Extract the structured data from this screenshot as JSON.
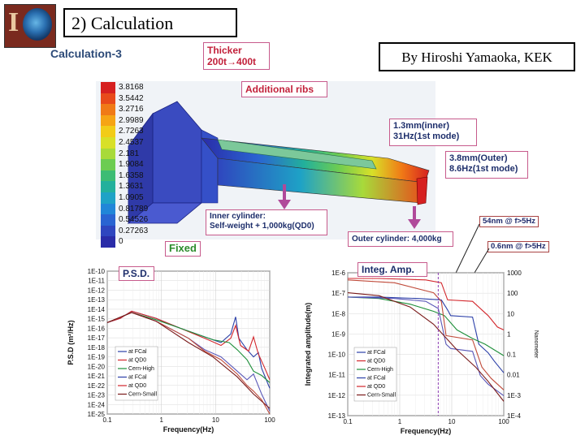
{
  "header": {
    "title": "2) Calculation",
    "author": "By Hiroshi Yamaoka, KEK",
    "subtitle": "Calculation-3"
  },
  "model": {
    "thicker_line1": "Thicker",
    "thicker_line2": "200t→400t",
    "ribs": "Additional ribs",
    "inner_line1": "1.3mm(inner)",
    "inner_line2": "31Hz(1st mode)",
    "outer_line1": "3.8mm(Outer)",
    "outer_line2": "8.6Hz(1st mode)",
    "inner_load_line1": "Inner cylinder:",
    "inner_load_line2": "Self-weight + 1,000kg(QD0)",
    "fixed": "Fixed",
    "outer_load": "Outer cylinder: 4,000kg",
    "legend_values": [
      "3.8168",
      "3.5442",
      "3.2716",
      "2.9989",
      "2.7263",
      "2.4537",
      "2.181",
      "1.9084",
      "1.6358",
      "1.3631",
      "1.0905",
      "0.81789",
      "0.54526",
      "0.27263",
      "0"
    ],
    "legend_colors": [
      "#d62020",
      "#e84a1a",
      "#f07a16",
      "#f6a414",
      "#f2cc18",
      "#d8e028",
      "#a8da3a",
      "#6ccc52",
      "#3cbc74",
      "#22b09c",
      "#1ea2c6",
      "#2186d8",
      "#2a64d2",
      "#2f46bf",
      "#2a2ca8"
    ]
  },
  "psd": {
    "title": "P.S.D.",
    "ylabel": "P.S.D (m²/Hz)",
    "xlabel": "Frequency(Hz)",
    "yticks": [
      "1E-10",
      "1E-11",
      "1E-12",
      "1E-13",
      "1E-14",
      "1E-15",
      "1E-16",
      "1E-17",
      "1E-18",
      "1E-19",
      "1E-20",
      "1E-21",
      "1E-22",
      "1E-23",
      "1E-24",
      "1E-25"
    ],
    "xticks": [
      "0.1",
      "1",
      "10",
      "100"
    ],
    "legend": [
      "at FCal",
      "at QD0",
      "Cern-High",
      "at FCal",
      "at QD0",
      "Cern-Small"
    ]
  },
  "amp": {
    "title": "Integ. Amp.",
    "ylabel": "Integrated amplitude(m)",
    "y2label": "Nanometer",
    "xlabel": "Frequency(Hz)",
    "yticks": [
      "1E-6",
      "1E-7",
      "1E-8",
      "1E-9",
      "1E-10",
      "1E-11",
      "1E-12",
      "1E-13"
    ],
    "y2ticks": [
      "1000",
      "100",
      "10",
      "1",
      "0.1",
      "0.01",
      "1E-3",
      "1E-4"
    ],
    "xticks": [
      "0.1",
      "1",
      "10",
      "100"
    ],
    "legend": [
      "at FCal",
      "at QD0",
      "Cern-High",
      "at FCal",
      "at QD0",
      "Cern-Small"
    ],
    "note1": "54nm @ f>5Hz",
    "note2": "0.6nm @ f>5Hz"
  },
  "colors": {
    "blue": "#2b3fa8",
    "red": "#d3262b",
    "green": "#1e8f3a",
    "darkred": "#7a1a1a"
  }
}
